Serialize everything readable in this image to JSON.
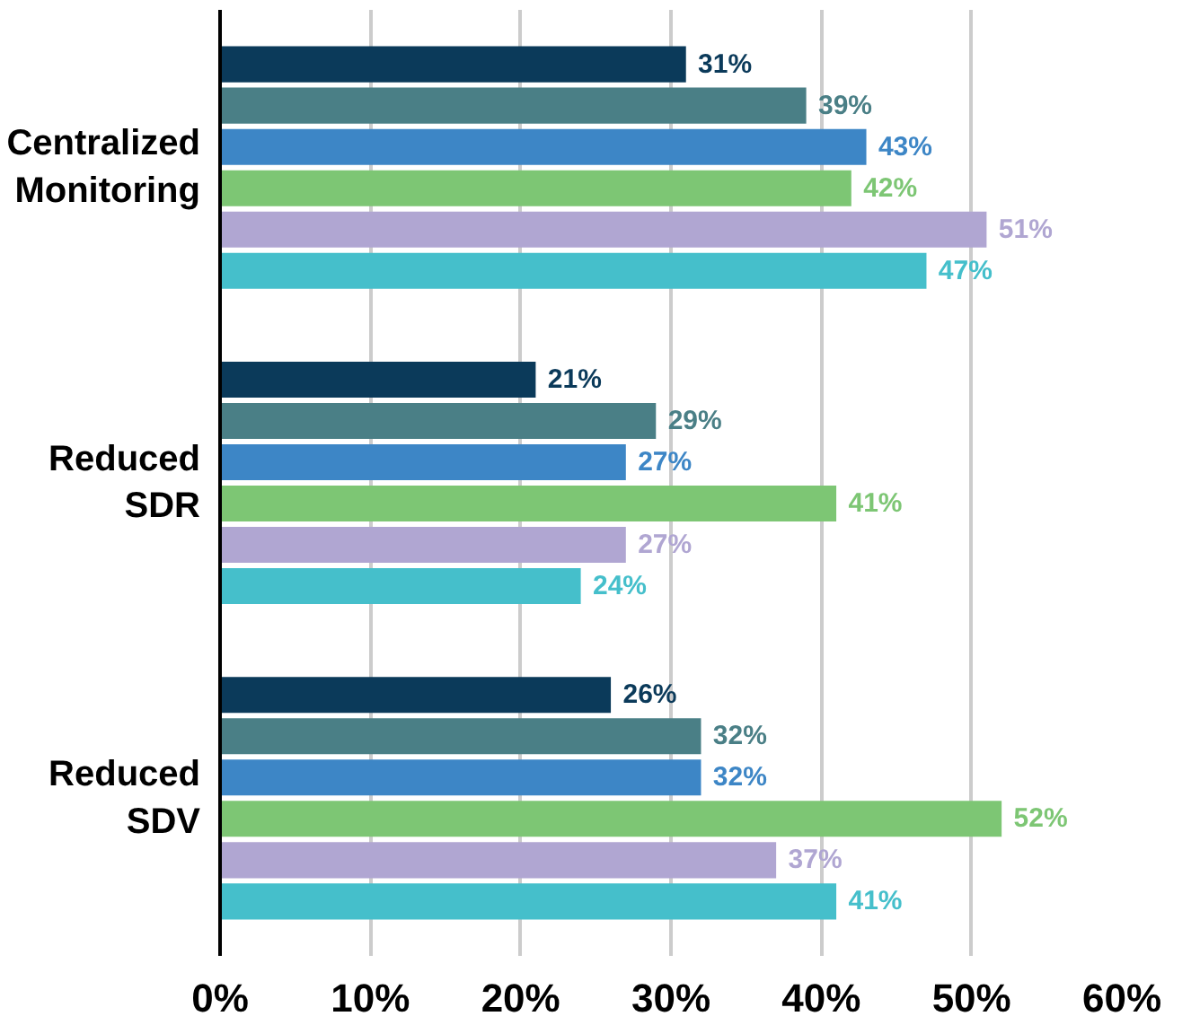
{
  "chart_data": {
    "type": "bar",
    "orientation": "horizontal",
    "categories": [
      "Centralized\nMonitoring",
      "Reduced\nSDR",
      "Reduced\nSDV"
    ],
    "series": [
      {
        "color": "#0b3a5a",
        "values": [
          31,
          21,
          26
        ],
        "value_labels": [
          "31%",
          "21%",
          "26%"
        ]
      },
      {
        "color": "#4a7f86",
        "values": [
          39,
          29,
          32
        ],
        "value_labels": [
          "39%",
          "29%",
          "32%"
        ]
      },
      {
        "color": "#3d86c6",
        "values": [
          43,
          27,
          32
        ],
        "value_labels": [
          "43%",
          "27%",
          "32%"
        ]
      },
      {
        "color": "#7dc674",
        "values": [
          42,
          41,
          52
        ],
        "value_labels": [
          "42%",
          "41%",
          "52%"
        ]
      },
      {
        "color": "#b0a6d2",
        "values": [
          51,
          27,
          37
        ],
        "value_labels": [
          "51%",
          "27%",
          "37%"
        ]
      },
      {
        "color": "#45bfcb",
        "values": [
          47,
          24,
          41
        ],
        "value_labels": [
          "47%",
          "24%",
          "41%"
        ]
      }
    ],
    "xlim": [
      0,
      60
    ],
    "xticks": [
      {
        "value": 0,
        "label": "0%"
      },
      {
        "value": 10,
        "label": "10%"
      },
      {
        "value": 20,
        "label": "20%"
      },
      {
        "value": 30,
        "label": "30%"
      },
      {
        "value": 40,
        "label": "40%"
      },
      {
        "value": 50,
        "label": "50%"
      },
      {
        "value": 60,
        "label": "60%"
      }
    ],
    "grid": "x"
  }
}
